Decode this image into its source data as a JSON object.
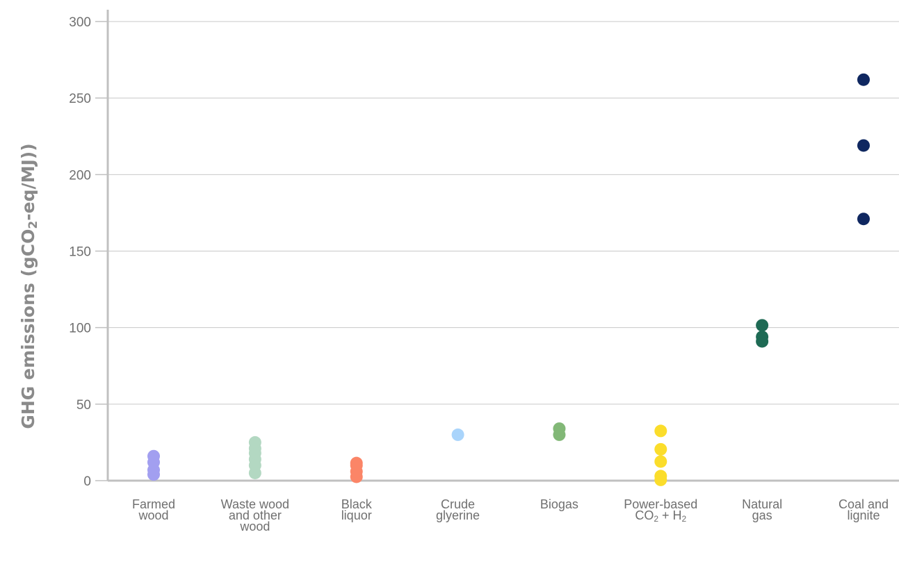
{
  "chart_data": {
    "type": "scatter",
    "title": "",
    "ylabel": {
      "pre": "GHG emissions (gCO",
      "sub": "2",
      "post": "-eq/MJ))"
    },
    "ylim": [
      0,
      300
    ],
    "yticks": [
      0,
      50,
      100,
      150,
      200,
      250,
      300
    ],
    "grid": true,
    "categories": [
      {
        "lines": [
          "Farmed",
          "wood"
        ],
        "color": "#a29ff0",
        "values": [
          4,
          7,
          12,
          16
        ]
      },
      {
        "lines": [
          "Waste wood",
          "and other",
          "wood"
        ],
        "color": "#b3d8c2",
        "values": [
          5,
          10,
          14,
          18,
          21,
          25
        ]
      },
      {
        "lines": [
          "Black",
          "liquor"
        ],
        "color": "#fb8567",
        "values": [
          2.5,
          6,
          10,
          11.5
        ]
      },
      {
        "lines": [
          "Crude",
          "glyerine"
        ],
        "color": "#a9d4fb",
        "values": [
          30
        ]
      },
      {
        "lines": [
          "Biogas"
        ],
        "color": "#82b877",
        "values": [
          30,
          34
        ]
      },
      {
        "lines": [
          "Power-based",
          "CO|2| + H|2"
        ],
        "color": "#fbdd2b",
        "values": [
          0.5,
          3,
          12.5,
          20.5,
          32.5
        ]
      },
      {
        "lines": [
          "Natural",
          "gas"
        ],
        "color": "#1e6a54",
        "values": [
          91,
          94,
          101.5
        ]
      },
      {
        "lines": [
          "Coal and",
          "lignite"
        ],
        "color": "#0f2760",
        "values": [
          171,
          219,
          262
        ]
      }
    ]
  }
}
